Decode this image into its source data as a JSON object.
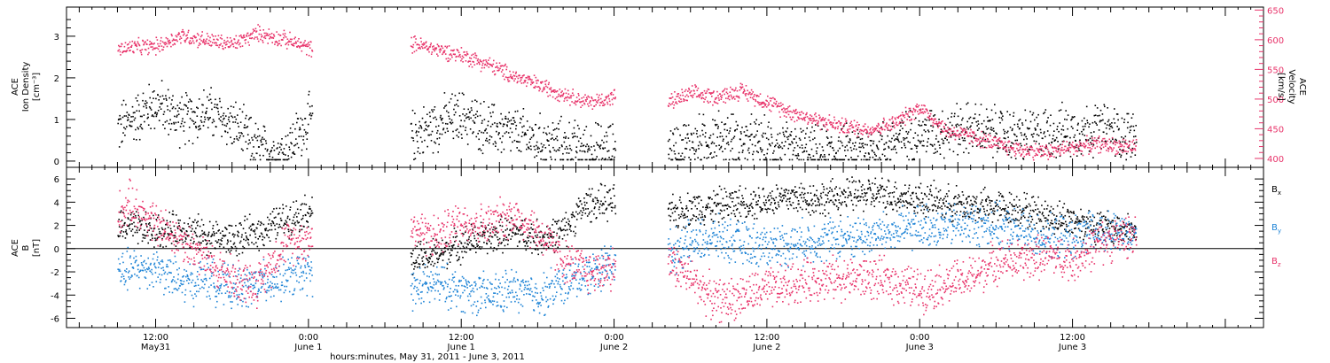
{
  "colors": {
    "black": "#000000",
    "pink": "#e8336a",
    "blue": "#1f84d6"
  },
  "chart_data": [
    {
      "type": "scatter",
      "panel": "top",
      "ylabel_left": [
        "ACE",
        "Ion Density",
        "[cm⁻³]"
      ],
      "ylabel_right": [
        "ACE",
        "Velocity",
        "[km/s]"
      ],
      "ylim_left": [
        -0.15,
        3.7
      ],
      "ylim_right": [
        385,
        655
      ],
      "yticks_left": [
        "0",
        "1",
        "2",
        "3"
      ],
      "yticks_right": [
        "400",
        "450",
        "500",
        "550",
        "600",
        "650"
      ],
      "series": [
        {
          "axis": "left",
          "color": "#000000",
          "segments": [
            {
              "x": [
                9.0,
                12,
                14,
                16,
                18,
                20,
                22,
                24.3
              ],
              "y": [
                0.8,
                1.4,
                1.0,
                1.2,
                0.9,
                0.3,
                0.2,
                1.1
              ]
            },
            {
              "x": [
                32.0,
                34,
                36,
                38,
                40,
                42,
                44,
                46,
                48.1
              ],
              "y": [
                0.6,
                0.9,
                1.1,
                0.8,
                0.7,
                0.5,
                0.4,
                0.3,
                0.3
              ]
            },
            {
              "x": [
                52.2,
                56,
                60,
                64,
                68,
                70,
                72,
                76,
                80,
                82,
                86,
                89
              ],
              "y": [
                0.3,
                0.6,
                0.4,
                0.2,
                0.3,
                0.5,
                0.7,
                0.8,
                0.6,
                0.7,
                0.8,
                0.6
              ]
            }
          ]
        },
        {
          "axis": "right",
          "color": "#e8336a",
          "segments": [
            {
              "x": [
                9.0,
                10,
                12,
                14,
                16,
                18,
                20,
                22,
                24.3
              ],
              "y": [
                585,
                588,
                590,
                608,
                600,
                593,
                612,
                602,
                585
              ]
            },
            {
              "x": [
                32.0,
                34,
                36,
                38,
                40,
                42,
                44,
                46,
                48.1
              ],
              "y": [
                595,
                585,
                575,
                560,
                540,
                525,
                510,
                495,
                505
              ]
            },
            {
              "x": [
                52.2,
                54,
                56,
                58,
                60,
                62,
                64,
                66,
                68,
                70,
                72,
                74,
                76,
                78,
                80,
                82,
                84,
                86,
                89
              ],
              "y": [
                495,
                510,
                505,
                515,
                495,
                478,
                465,
                455,
                450,
                460,
                488,
                448,
                438,
                425,
                415,
                412,
                420,
                425,
                420
              ]
            }
          ]
        }
      ]
    },
    {
      "type": "scatter",
      "panel": "bottom",
      "ylabel_left": [
        "ACE",
        "B",
        "[nT]"
      ],
      "ylim": [
        -6.8,
        7.0
      ],
      "yticks": [
        "-6",
        "-4",
        "-2",
        "0",
        "2",
        "4",
        "6"
      ],
      "zero_line": true,
      "legend": [
        {
          "text": "Bx",
          "color": "#000000"
        },
        {
          "text": "By",
          "color": "#1f84d6"
        },
        {
          "text": "Bz",
          "color": "#e8336a"
        }
      ],
      "series": [
        {
          "name": "Bx",
          "color": "#000000",
          "segments": [
            {
              "x": [
                9.0,
                12,
                14,
                16,
                18,
                20,
                22,
                24.3
              ],
              "y": [
                2.0,
                1.5,
                1.8,
                1.2,
                0.8,
                1.5,
                2.5,
                3.5
              ]
            },
            {
              "x": [
                32.0,
                34,
                36,
                38,
                40,
                42,
                44,
                45,
                46,
                48.1
              ],
              "y": [
                -1.0,
                -0.5,
                0.5,
                1.0,
                1.5,
                1.0,
                1.5,
                3.0,
                4.0,
                4.0
              ]
            },
            {
              "x": [
                52.2,
                54,
                56,
                58,
                60,
                62,
                64,
                66,
                68,
                70,
                72,
                74,
                76,
                78,
                80,
                82,
                84,
                86,
                89
              ],
              "y": [
                3.0,
                3.5,
                3.8,
                4.0,
                4.2,
                4.5,
                4.3,
                4.6,
                4.8,
                4.6,
                4.3,
                4.0,
                3.8,
                3.6,
                3.5,
                2.8,
                2.5,
                2.0,
                1.5
              ]
            }
          ]
        },
        {
          "name": "By",
          "color": "#1f84d6",
          "segments": [
            {
              "x": [
                9.0,
                12,
                14,
                16,
                18,
                20,
                22,
                24.3
              ],
              "y": [
                -2.0,
                -1.5,
                -3.0,
                -2.5,
                -3.5,
                -3.0,
                -2.5,
                -2.0
              ]
            },
            {
              "x": [
                32.0,
                34,
                36,
                38,
                40,
                42,
                44,
                46,
                48.1
              ],
              "y": [
                -3.5,
                -3.0,
                -3.5,
                -4.0,
                -3.5,
                -4.0,
                -3.0,
                -2.0,
                -1.0
              ]
            },
            {
              "x": [
                52.2,
                54,
                56,
                58,
                60,
                62,
                64,
                66,
                68,
                70,
                72,
                74,
                76,
                78,
                80,
                82,
                84,
                86,
                89
              ],
              "y": [
                -0.3,
                0.5,
                1.0,
                0.5,
                0.3,
                0.5,
                0.8,
                1.0,
                1.2,
                1.5,
                2.0,
                2.0,
                2.2,
                2.0,
                1.5,
                1.0,
                1.0,
                1.5,
                1.2
              ]
            }
          ]
        },
        {
          "name": "Bz",
          "color": "#e8336a",
          "segments": [
            {
              "x": [
                9.0,
                10,
                12,
                14,
                16,
                18,
                20,
                22,
                24.3
              ],
              "y": [
                3.0,
                4.0,
                2.0,
                1.0,
                -1.0,
                -2.5,
                -3.0,
                0.5,
                1.0
              ]
            },
            {
              "x": [
                32.0,
                34,
                36,
                38,
                40,
                42,
                44,
                46,
                48.1
              ],
              "y": [
                2.0,
                1.0,
                2.5,
                2.0,
                3.0,
                1.5,
                -1.0,
                -2.0,
                -1.5
              ]
            },
            {
              "x": [
                52.2,
                54,
                56,
                58,
                60,
                62,
                64,
                66,
                68,
                70,
                72,
                74,
                76,
                78,
                80,
                82,
                84,
                86,
                89
              ],
              "y": [
                -1.0,
                -2.5,
                -4.5,
                -4.0,
                -3.5,
                -3.0,
                -2.5,
                -2.5,
                -2.5,
                -2.8,
                -3.5,
                -3.0,
                -2.5,
                -1.0,
                -1.0,
                -0.5,
                -1.0,
                0.5,
                1.5
              ]
            }
          ]
        }
      ]
    }
  ],
  "x_axis": {
    "xlim": [
      5.0,
      99.0
    ],
    "major_ticks": [
      {
        "x": 12,
        "line1": "12:00",
        "line2": "May31"
      },
      {
        "x": 24,
        "line1": "0:00",
        "line2": "June 1"
      },
      {
        "x": 36,
        "line1": "12:00",
        "line2": "June 1"
      },
      {
        "x": 48,
        "line1": "0:00",
        "line2": "June 2"
      },
      {
        "x": 60,
        "line1": "12:00",
        "line2": "June 2"
      },
      {
        "x": 72,
        "line1": "0:00",
        "line2": "June 3"
      },
      {
        "x": 84,
        "line1": "12:00",
        "line2": "June 3"
      }
    ],
    "label": "hours:minutes, May 31, 2011 - June  3, 2011"
  }
}
